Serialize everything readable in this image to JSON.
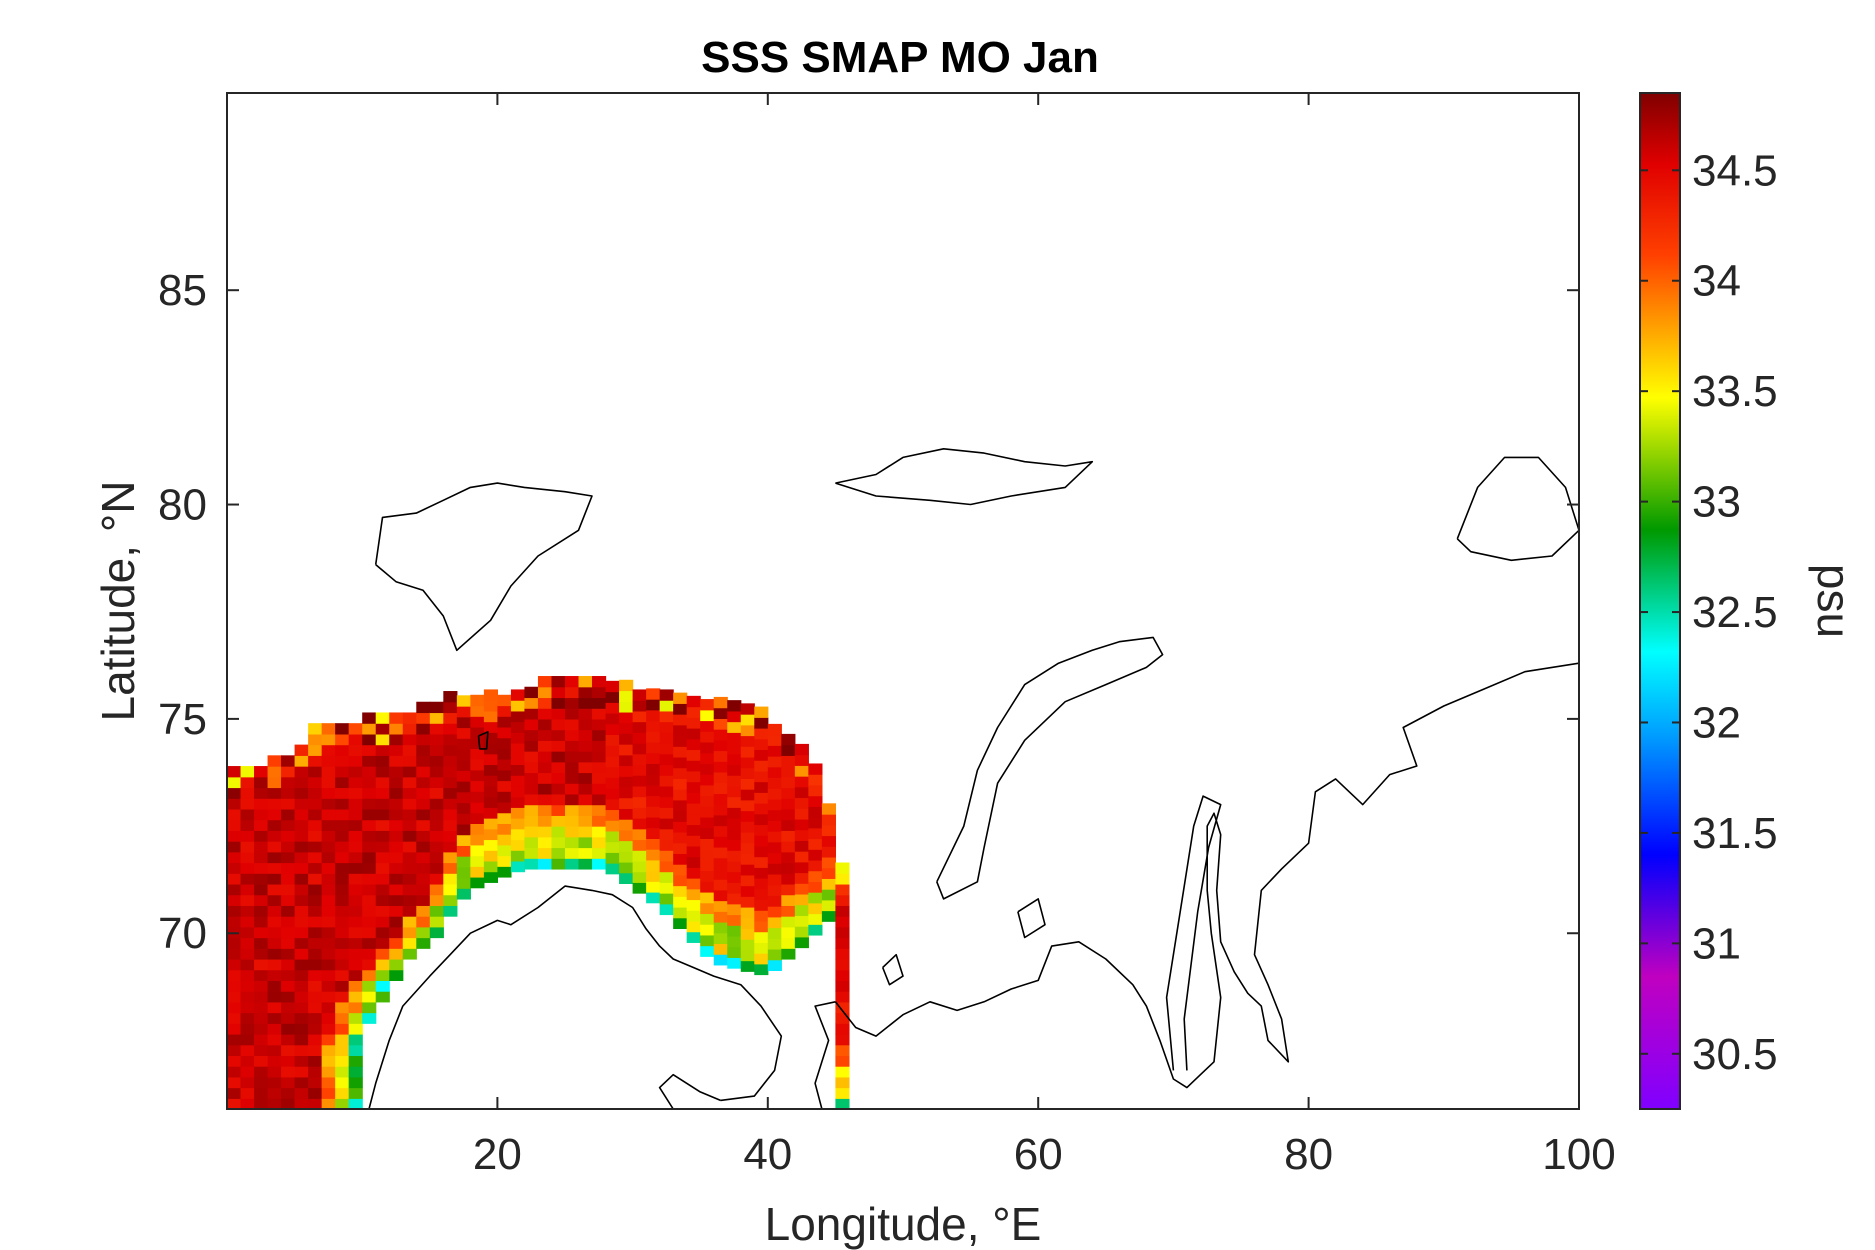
{
  "chart_data": {
    "type": "heatmap",
    "title": "SSS SMAP MO Jan",
    "xlabel": "Longitude, °E",
    "ylabel": "Latitude, °N",
    "xlim": [
      0,
      100
    ],
    "ylim": [
      65.9,
      89.6
    ],
    "xticks": [
      20,
      40,
      60,
      80,
      100
    ],
    "yticks": [
      70,
      75,
      80,
      85
    ],
    "colorbar": {
      "label": "psu",
      "lim": [
        30.25,
        34.85
      ],
      "ticks": [
        30.5,
        31,
        31.5,
        32,
        32.5,
        33,
        33.5,
        34,
        34.5
      ],
      "colormap": "jet"
    },
    "grid": false,
    "salinity_field": {
      "cell_size_deg": [
        1.0,
        0.25
      ],
      "region": {
        "west_lon": 0,
        "east_lon": 45.5,
        "south_lat": 65.9,
        "northern_edge": [
          [
            0,
            73.7
          ],
          [
            5,
            74.1
          ],
          [
            6,
            74.7
          ],
          [
            12,
            75.0
          ],
          [
            16,
            75.4
          ],
          [
            20,
            75.5
          ],
          [
            25,
            75.9
          ],
          [
            30,
            75.7
          ],
          [
            35,
            75.4
          ],
          [
            40,
            75.0
          ],
          [
            42,
            74.5
          ],
          [
            44,
            73.5
          ],
          [
            45.5,
            71.5
          ]
        ],
        "southern_edge": [
          [
            45.5,
            70.6
          ],
          [
            43,
            69.8
          ],
          [
            40,
            69.0
          ],
          [
            36,
            69.3
          ],
          [
            32,
            70.6
          ],
          [
            28,
            71.5
          ],
          [
            22,
            71.5
          ],
          [
            18,
            71.0
          ],
          [
            15,
            69.8
          ],
          [
            12,
            68.8
          ],
          [
            10,
            67.5
          ],
          [
            9.5,
            65.9
          ]
        ]
      },
      "typical_values": {
        "open_ocean": 34.6,
        "northern_margin": 34.3,
        "coastal_band": 33.4,
        "coast_edge": 32.2
      }
    },
    "coastlines": [
      {
        "name": "Scandinavia",
        "points": [
          [
            10.5,
            65.9
          ],
          [
            11,
            66.5
          ],
          [
            12,
            67.5
          ],
          [
            13,
            68.3
          ],
          [
            15,
            69.0
          ],
          [
            16.5,
            69.5
          ],
          [
            18,
            70.0
          ],
          [
            20,
            70.3
          ],
          [
            21,
            70.2
          ],
          [
            23,
            70.6
          ],
          [
            25,
            71.1
          ],
          [
            27,
            71.0
          ],
          [
            28.5,
            70.9
          ],
          [
            30,
            70.6
          ],
          [
            31,
            70.1
          ],
          [
            32,
            69.7
          ],
          [
            33,
            69.4
          ],
          [
            34.5,
            69.2
          ],
          [
            36,
            69.0
          ],
          [
            38,
            68.8
          ],
          [
            39.5,
            68.3
          ],
          [
            41,
            67.6
          ],
          [
            40.5,
            66.8
          ],
          [
            39,
            66.2
          ],
          [
            36.5,
            66.1
          ]
        ]
      },
      {
        "name": "White Sea",
        "points": [
          [
            36.5,
            66.1
          ],
          [
            35,
            66.3
          ],
          [
            33,
            66.7
          ],
          [
            32,
            66.4
          ],
          [
            33,
            65.9
          ]
        ]
      },
      {
        "name": "Kola bay",
        "points": [
          [
            44,
            65.9
          ],
          [
            43.5,
            66.5
          ],
          [
            44.5,
            67.5
          ],
          [
            43.5,
            68.3
          ],
          [
            45,
            68.4
          ]
        ]
      },
      {
        "name": "Russia mainland",
        "points": [
          [
            45,
            68.4
          ],
          [
            46.5,
            67.8
          ],
          [
            48,
            67.6
          ],
          [
            50,
            68.1
          ],
          [
            52,
            68.4
          ],
          [
            54,
            68.2
          ],
          [
            56,
            68.4
          ],
          [
            58,
            68.7
          ],
          [
            60,
            68.9
          ],
          [
            61,
            69.7
          ],
          [
            63,
            69.8
          ],
          [
            65,
            69.4
          ],
          [
            67,
            68.8
          ],
          [
            68,
            68.3
          ],
          [
            69,
            67.5
          ],
          [
            70,
            66.6
          ],
          [
            71,
            66.4
          ],
          [
            72,
            66.7
          ],
          [
            73,
            67.0
          ],
          [
            73.5,
            68.5
          ],
          [
            72.8,
            70.0
          ],
          [
            72.5,
            71.0
          ],
          [
            72.5,
            72.5
          ],
          [
            73,
            72.8
          ],
          [
            73.5,
            72.3
          ],
          [
            73.2,
            71.0
          ],
          [
            73.5,
            69.8
          ],
          [
            74.5,
            69.1
          ],
          [
            75.5,
            68.6
          ],
          [
            76.5,
            68.3
          ],
          [
            77,
            67.5
          ],
          [
            78.5,
            67.0
          ],
          [
            78,
            68.0
          ],
          [
            77,
            68.8
          ],
          [
            76,
            69.5
          ],
          [
            76.5,
            71.0
          ],
          [
            78,
            71.5
          ],
          [
            80,
            72.1
          ],
          [
            80.5,
            73.3
          ],
          [
            82,
            73.6
          ],
          [
            84,
            73.0
          ],
          [
            86,
            73.7
          ],
          [
            88,
            73.9
          ],
          [
            87,
            74.8
          ],
          [
            90,
            75.3
          ],
          [
            93,
            75.7
          ],
          [
            96,
            76.1
          ],
          [
            100,
            76.3
          ]
        ]
      },
      {
        "name": "Novaya Zemlya",
        "points": [
          [
            52.5,
            71.2
          ],
          [
            54.5,
            72.5
          ],
          [
            55.5,
            73.8
          ],
          [
            57,
            74.8
          ],
          [
            59,
            75.8
          ],
          [
            61.5,
            76.3
          ],
          [
            64,
            76.6
          ],
          [
            66,
            76.8
          ],
          [
            68.5,
            76.9
          ],
          [
            69.2,
            76.5
          ],
          [
            68,
            76.2
          ],
          [
            65,
            75.8
          ],
          [
            62,
            75.4
          ],
          [
            59,
            74.5
          ],
          [
            57,
            73.5
          ],
          [
            56,
            72.0
          ],
          [
            55.5,
            71.2
          ],
          [
            53,
            70.8
          ],
          [
            52.5,
            71.2
          ]
        ]
      },
      {
        "name": "Vaygach",
        "points": [
          [
            58.5,
            70.5
          ],
          [
            60,
            70.8
          ],
          [
            60.5,
            70.2
          ],
          [
            59,
            69.9
          ],
          [
            58.5,
            70.5
          ]
        ]
      },
      {
        "name": "Kolguev",
        "points": [
          [
            48.5,
            69.2
          ],
          [
            49.5,
            69.5
          ],
          [
            50,
            69.0
          ],
          [
            49,
            68.8
          ],
          [
            48.5,
            69.2
          ]
        ]
      },
      {
        "name": "Yamal east shore",
        "points": [
          [
            70,
            66.8
          ],
          [
            69.5,
            68.5
          ],
          [
            70.5,
            70.5
          ],
          [
            71.5,
            72.5
          ],
          [
            72.2,
            73.2
          ],
          [
            73.5,
            73.0
          ],
          [
            72.6,
            72.0
          ],
          [
            71.8,
            70.5
          ],
          [
            70.8,
            68.0
          ],
          [
            71,
            66.8
          ]
        ]
      },
      {
        "name": "Svalbard",
        "points": [
          [
            11,
            78.6
          ],
          [
            11.5,
            79.7
          ],
          [
            14,
            79.8
          ],
          [
            16,
            80.1
          ],
          [
            18,
            80.4
          ],
          [
            20,
            80.5
          ],
          [
            22,
            80.4
          ],
          [
            25,
            80.3
          ],
          [
            27,
            80.2
          ],
          [
            26,
            79.4
          ],
          [
            23,
            78.8
          ],
          [
            21,
            78.1
          ],
          [
            19.5,
            77.3
          ],
          [
            17,
            76.6
          ],
          [
            16,
            77.4
          ],
          [
            14.5,
            78.0
          ],
          [
            12.5,
            78.2
          ],
          [
            11,
            78.6
          ]
        ]
      },
      {
        "name": "Franz Josef Land",
        "points": [
          [
            45,
            80.5
          ],
          [
            48,
            80.7
          ],
          [
            50,
            81.1
          ],
          [
            53,
            81.3
          ],
          [
            56,
            81.2
          ],
          [
            59,
            81.0
          ],
          [
            62,
            80.9
          ],
          [
            64,
            81.0
          ],
          [
            62,
            80.4
          ],
          [
            58,
            80.2
          ],
          [
            55,
            80.0
          ],
          [
            52,
            80.1
          ],
          [
            48,
            80.2
          ],
          [
            45,
            80.5
          ]
        ]
      },
      {
        "name": "Severnaya Zemlya",
        "points": [
          [
            91,
            79.2
          ],
          [
            92.5,
            80.4
          ],
          [
            94.5,
            81.1
          ],
          [
            97,
            81.1
          ],
          [
            99,
            80.4
          ],
          [
            100,
            79.4
          ],
          [
            98,
            78.8
          ],
          [
            95,
            78.7
          ],
          [
            92,
            78.9
          ],
          [
            91,
            79.2
          ]
        ]
      },
      {
        "name": "Bear Island",
        "points": [
          [
            18.6,
            74.6
          ],
          [
            19.3,
            74.7
          ],
          [
            19.2,
            74.3
          ],
          [
            18.7,
            74.3
          ],
          [
            18.6,
            74.6
          ]
        ]
      }
    ]
  }
}
